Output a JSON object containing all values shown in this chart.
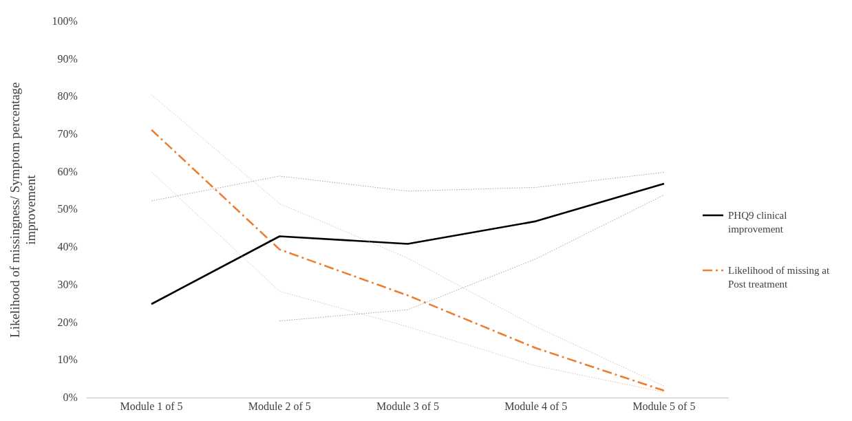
{
  "chart_data": {
    "type": "line",
    "ylabel": "Likelihood of missingness/ Symptom percentage improvement",
    "categories": [
      "Module 1 of 5",
      "Module 2 of 5",
      "Module 3 of 5",
      "Module 4 of 5",
      "Module 5 of 5"
    ],
    "ylim": [
      0,
      100
    ],
    "yticks": [
      {
        "value": 0,
        "label": "0%"
      },
      {
        "value": 10,
        "label": "10%"
      },
      {
        "value": 20,
        "label": "20%"
      },
      {
        "value": 30,
        "label": "30%"
      },
      {
        "value": 40,
        "label": "40%"
      },
      {
        "value": 50,
        "label": "50%"
      },
      {
        "value": 60,
        "label": "60%"
      },
      {
        "value": 70,
        "label": "70%"
      },
      {
        "value": 80,
        "label": "80%"
      },
      {
        "value": 90,
        "label": "90%"
      },
      {
        "value": 100,
        "label": "100%"
      }
    ],
    "grid": false,
    "legend": "right",
    "marker": "none",
    "series": [
      {
        "color": "#999999",
        "line_style": "dotted",
        "values": [
          52.4,
          59,
          55,
          56,
          60
        ]
      },
      {
        "color": "#999999",
        "line_style": "dotted",
        "values": [
          null,
          20.5,
          23.5,
          37,
          54
        ]
      },
      {
        "color": "#f4b183",
        "line_style": "dotted",
        "values": [
          80.6,
          51.7,
          37.2,
          19,
          3.2
        ]
      },
      {
        "color": "#f4b183",
        "line_style": "dotted",
        "values": [
          60.1,
          28.4,
          19,
          8.6,
          1.6
        ]
      },
      {
        "name": "PHQ9 clinical improvement",
        "color": "#000000",
        "line_style": "solid",
        "values": [
          25,
          43,
          41,
          47,
          57
        ]
      },
      {
        "name": "Likelihood of missing at Post treatment",
        "color": "#ed7d31",
        "line_style": "dashed",
        "values": [
          71.3,
          39.5,
          27.3,
          13.3,
          2
        ]
      }
    ]
  }
}
